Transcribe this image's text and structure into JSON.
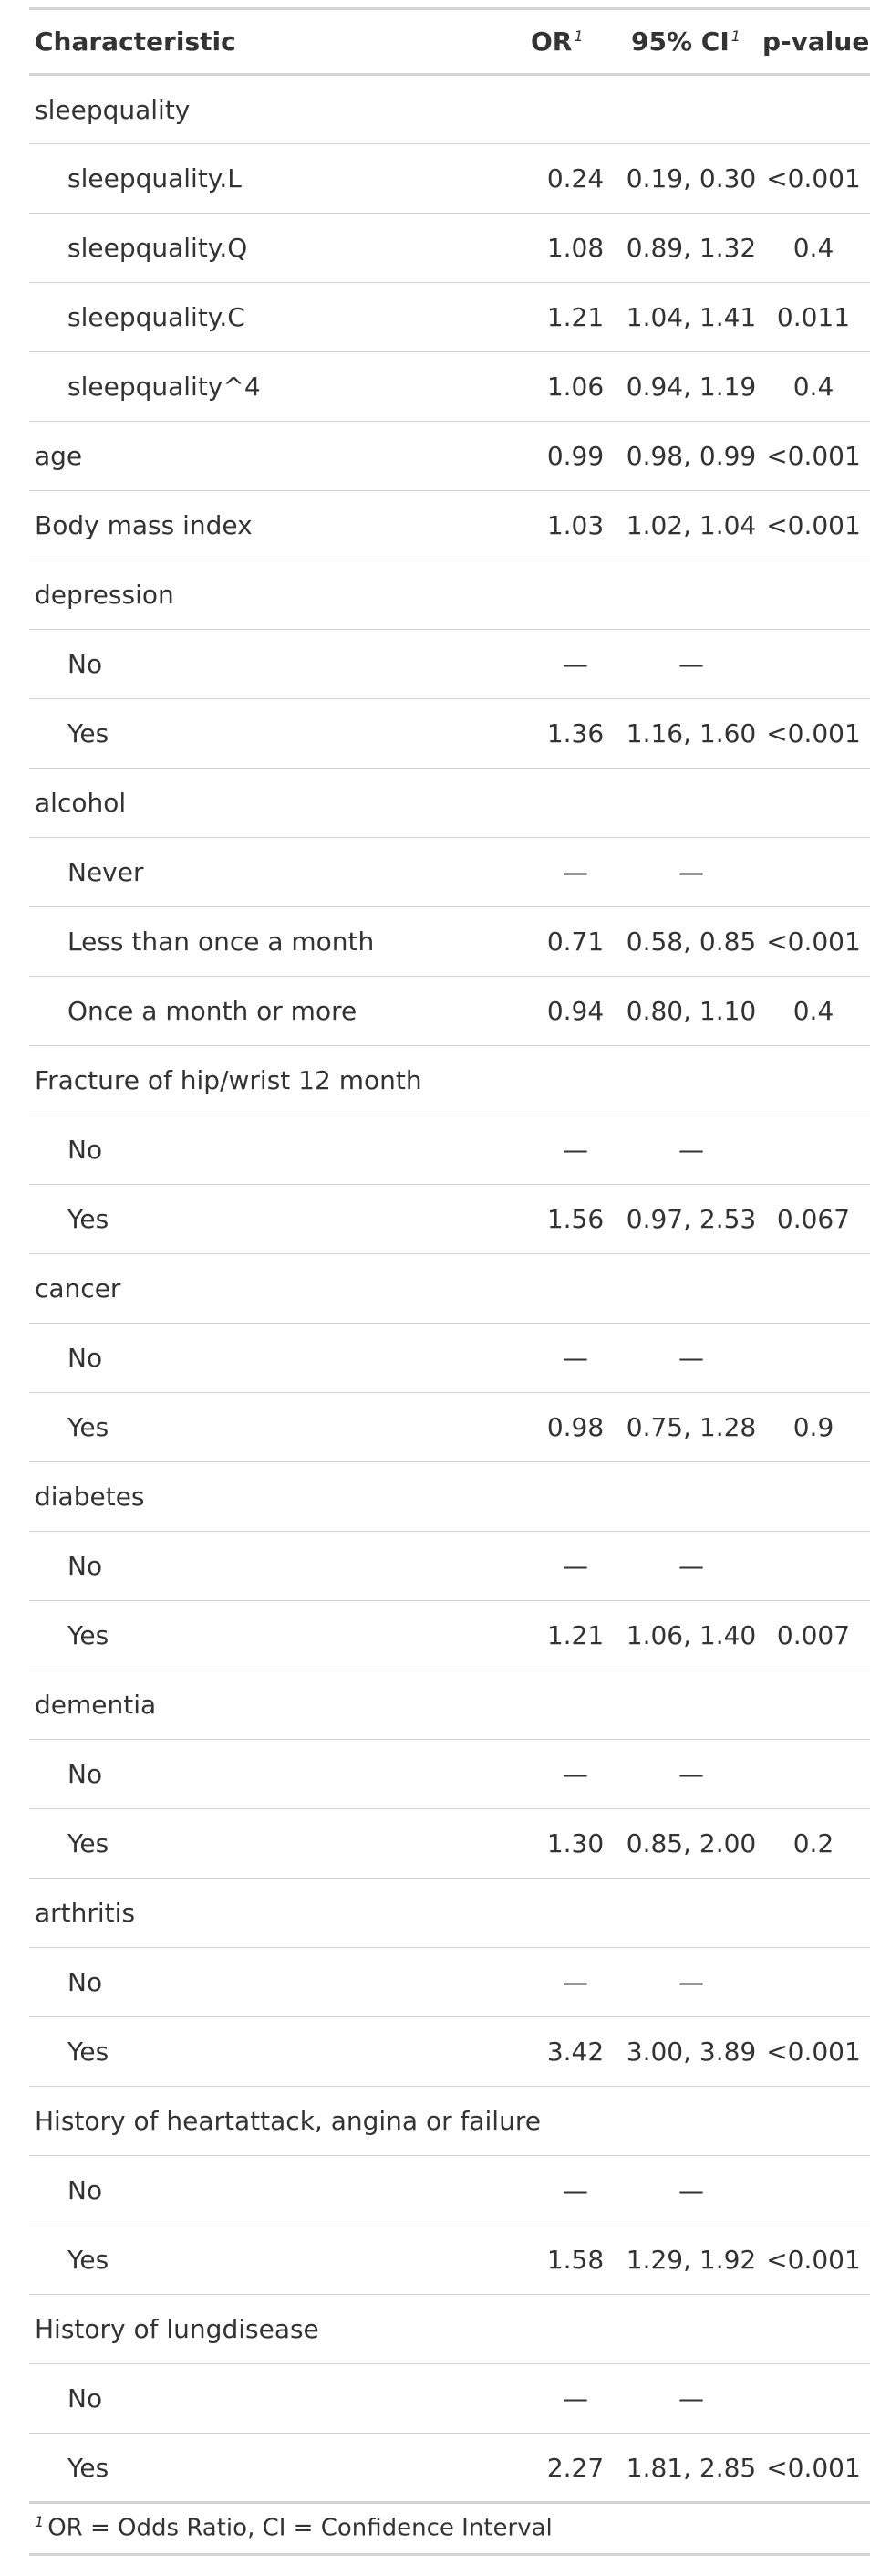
{
  "table": {
    "headers": {
      "characteristic": "Characteristic",
      "or": "OR",
      "ci": "95% CI",
      "p": "p-value",
      "footnote_marker": "1"
    },
    "rows": [
      {
        "label": "sleepquality",
        "level": 0,
        "or": "",
        "ci": "",
        "p": ""
      },
      {
        "label": "sleepquality.L",
        "level": 1,
        "or": "0.24",
        "ci": "0.19, 0.30",
        "p": "<0.001"
      },
      {
        "label": "sleepquality.Q",
        "level": 1,
        "or": "1.08",
        "ci": "0.89, 1.32",
        "p": "0.4"
      },
      {
        "label": "sleepquality.C",
        "level": 1,
        "or": "1.21",
        "ci": "1.04, 1.41",
        "p": "0.011"
      },
      {
        "label": "sleepquality^4",
        "level": 1,
        "or": "1.06",
        "ci": "0.94, 1.19",
        "p": "0.4"
      },
      {
        "label": "age",
        "level": 0,
        "or": "0.99",
        "ci": "0.98, 0.99",
        "p": "<0.001"
      },
      {
        "label": "Body mass index",
        "level": 0,
        "or": "1.03",
        "ci": "1.02, 1.04",
        "p": "<0.001"
      },
      {
        "label": "depression",
        "level": 0,
        "or": "",
        "ci": "",
        "p": ""
      },
      {
        "label": "No",
        "level": 1,
        "or": "—",
        "ci": "—",
        "p": ""
      },
      {
        "label": "Yes",
        "level": 1,
        "or": "1.36",
        "ci": "1.16, 1.60",
        "p": "<0.001"
      },
      {
        "label": "alcohol",
        "level": 0,
        "or": "",
        "ci": "",
        "p": ""
      },
      {
        "label": "Never",
        "level": 1,
        "or": "—",
        "ci": "—",
        "p": ""
      },
      {
        "label": "Less than once a month",
        "level": 1,
        "or": "0.71",
        "ci": "0.58, 0.85",
        "p": "<0.001"
      },
      {
        "label": "Once a month or more",
        "level": 1,
        "or": "0.94",
        "ci": "0.80, 1.10",
        "p": "0.4"
      },
      {
        "label": "Fracture of hip/wrist 12 month",
        "level": 0,
        "or": "",
        "ci": "",
        "p": ""
      },
      {
        "label": "No",
        "level": 1,
        "or": "—",
        "ci": "—",
        "p": ""
      },
      {
        "label": "Yes",
        "level": 1,
        "or": "1.56",
        "ci": "0.97, 2.53",
        "p": "0.067"
      },
      {
        "label": "cancer",
        "level": 0,
        "or": "",
        "ci": "",
        "p": ""
      },
      {
        "label": "No",
        "level": 1,
        "or": "—",
        "ci": "—",
        "p": ""
      },
      {
        "label": "Yes",
        "level": 1,
        "or": "0.98",
        "ci": "0.75, 1.28",
        "p": "0.9"
      },
      {
        "label": "diabetes",
        "level": 0,
        "or": "",
        "ci": "",
        "p": ""
      },
      {
        "label": "No",
        "level": 1,
        "or": "—",
        "ci": "—",
        "p": ""
      },
      {
        "label": "Yes",
        "level": 1,
        "or": "1.21",
        "ci": "1.06, 1.40",
        "p": "0.007"
      },
      {
        "label": "dementia",
        "level": 0,
        "or": "",
        "ci": "",
        "p": ""
      },
      {
        "label": "No",
        "level": 1,
        "or": "—",
        "ci": "—",
        "p": ""
      },
      {
        "label": "Yes",
        "level": 1,
        "or": "1.30",
        "ci": "0.85, 2.00",
        "p": "0.2"
      },
      {
        "label": "arthritis",
        "level": 0,
        "or": "",
        "ci": "",
        "p": ""
      },
      {
        "label": "No",
        "level": 1,
        "or": "—",
        "ci": "—",
        "p": ""
      },
      {
        "label": "Yes",
        "level": 1,
        "or": "3.42",
        "ci": "3.00, 3.89",
        "p": "<0.001"
      },
      {
        "label": "History of heartattack, angina or failure",
        "level": 0,
        "or": "",
        "ci": "",
        "p": ""
      },
      {
        "label": "No",
        "level": 1,
        "or": "—",
        "ci": "—",
        "p": ""
      },
      {
        "label": "Yes",
        "level": 1,
        "or": "1.58",
        "ci": "1.29, 1.92",
        "p": "<0.001"
      },
      {
        "label": "History of lungdisease",
        "level": 0,
        "or": "",
        "ci": "",
        "p": ""
      },
      {
        "label": "No",
        "level": 1,
        "or": "—",
        "ci": "—",
        "p": ""
      },
      {
        "label": "Yes",
        "level": 1,
        "or": "2.27",
        "ci": "1.81, 2.85",
        "p": "<0.001"
      }
    ],
    "footnote": {
      "marker": "1",
      "text": "OR = Odds Ratio, CI = Confidence Interval"
    }
  }
}
